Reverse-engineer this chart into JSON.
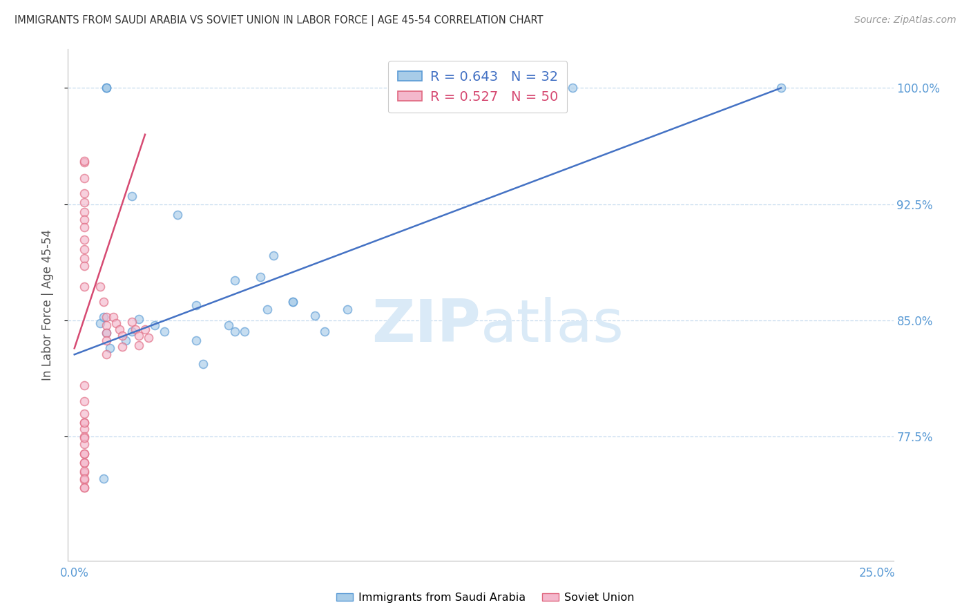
{
  "title": "IMMIGRANTS FROM SAUDI ARABIA VS SOVIET UNION IN LABOR FORCE | AGE 45-54 CORRELATION CHART",
  "source": "Source: ZipAtlas.com",
  "ylabel": "In Labor Force | Age 45-54",
  "xlim": [
    -0.002,
    0.255
  ],
  "ylim": [
    0.695,
    1.025
  ],
  "yticks": [
    0.775,
    0.85,
    0.925,
    1.0
  ],
  "ytick_labels": [
    "77.5%",
    "85.0%",
    "92.5%",
    "100.0%"
  ],
  "xtick_positions": [
    0.0,
    0.25
  ],
  "xtick_labels": [
    "0.0%",
    "25.0%"
  ],
  "blue_scatter_x": [
    0.018,
    0.038,
    0.058,
    0.062,
    0.075,
    0.032,
    0.05,
    0.068,
    0.078,
    0.085,
    0.008,
    0.009,
    0.01,
    0.011,
    0.016,
    0.018,
    0.02,
    0.025,
    0.028,
    0.038,
    0.04,
    0.048,
    0.05,
    0.053,
    0.06,
    0.068,
    0.155,
    0.22,
    0.009,
    0.01,
    0.01,
    0.01
  ],
  "blue_scatter_y": [
    0.93,
    0.86,
    0.878,
    0.892,
    0.853,
    0.918,
    0.876,
    0.862,
    0.843,
    0.857,
    0.848,
    0.852,
    0.842,
    0.832,
    0.837,
    0.843,
    0.851,
    0.847,
    0.843,
    0.837,
    0.822,
    0.847,
    0.843,
    0.843,
    0.857,
    0.862,
    1.0,
    1.0,
    0.748,
    1.0,
    1.0,
    1.0
  ],
  "pink_scatter_x": [
    0.003,
    0.003,
    0.003,
    0.003,
    0.003,
    0.003,
    0.003,
    0.003,
    0.003,
    0.003,
    0.003,
    0.008,
    0.009,
    0.01,
    0.01,
    0.01,
    0.01,
    0.01,
    0.012,
    0.013,
    0.014,
    0.015,
    0.015,
    0.018,
    0.019,
    0.02,
    0.02,
    0.022,
    0.023,
    0.003,
    0.003,
    0.003,
    0.003,
    0.003,
    0.003,
    0.003,
    0.003,
    0.003,
    0.003,
    0.003,
    0.003,
    0.003,
    0.003,
    0.003,
    0.003,
    0.003,
    0.003,
    0.003,
    0.003,
    0.003
  ],
  "pink_scatter_y": [
    0.952,
    0.942,
    0.932,
    0.926,
    0.92,
    0.915,
    0.91,
    0.902,
    0.896,
    0.89,
    0.885,
    0.872,
    0.862,
    0.852,
    0.847,
    0.842,
    0.837,
    0.828,
    0.852,
    0.848,
    0.844,
    0.84,
    0.833,
    0.849,
    0.844,
    0.84,
    0.834,
    0.844,
    0.839,
    0.953,
    0.872,
    0.808,
    0.798,
    0.79,
    0.784,
    0.78,
    0.775,
    0.77,
    0.764,
    0.758,
    0.752,
    0.747,
    0.742,
    0.784,
    0.774,
    0.764,
    0.758,
    0.753,
    0.748,
    0.742
  ],
  "blue_line_x": [
    0.0,
    0.22
  ],
  "blue_line_y": [
    0.828,
    1.0
  ],
  "pink_line_x": [
    0.0,
    0.022
  ],
  "pink_line_y": [
    0.832,
    0.97
  ],
  "blue_dot_color": "#a8cce8",
  "blue_edge_color": "#5b9bd5",
  "pink_dot_color": "#f4b8cc",
  "pink_edge_color": "#e06880",
  "blue_line_color": "#4472c4",
  "pink_line_color": "#d64a72",
  "grid_color": "#c6dbef",
  "title_color": "#333333",
  "tick_label_color": "#5b9bd5",
  "right_tick_color": "#5b9bd5",
  "source_color": "#999999",
  "watermark_color": "#daeaf7",
  "legend_blue_text_color": "#4472c4",
  "legend_pink_text_color": "#d64a72",
  "marker_size": 75,
  "marker_linewidth": 1.2,
  "background_color": "#ffffff"
}
